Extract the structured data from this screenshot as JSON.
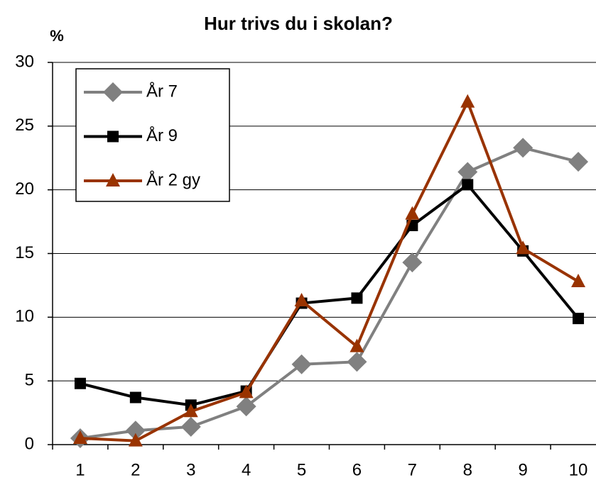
{
  "chart_data": {
    "type": "line",
    "title": "Hur trivs du i skolan?",
    "y_label": "%",
    "categories": [
      "1",
      "2",
      "3",
      "4",
      "5",
      "6",
      "7",
      "8",
      "9",
      "10"
    ],
    "series": [
      {
        "name": "År 7",
        "color": "#808080",
        "marker": "diamond",
        "values": [
          0.5,
          1.1,
          1.4,
          3.0,
          6.3,
          6.5,
          14.3,
          21.4,
          23.3,
          22.2
        ]
      },
      {
        "name": "År 9",
        "color": "#000000",
        "marker": "square",
        "values": [
          4.8,
          3.7,
          3.1,
          4.2,
          11.1,
          11.5,
          17.2,
          20.4,
          15.2,
          9.9
        ]
      },
      {
        "name": "År 2 gy",
        "color": "#993300",
        "marker": "triangle",
        "values": [
          0.5,
          0.3,
          2.6,
          4.1,
          11.3,
          7.7,
          18.1,
          26.9,
          15.4,
          12.8
        ]
      }
    ],
    "ylim": [
      0,
      30
    ],
    "yticks": [
      0,
      5,
      10,
      15,
      20,
      25,
      30
    ],
    "grid": true,
    "legend": "top-left"
  }
}
